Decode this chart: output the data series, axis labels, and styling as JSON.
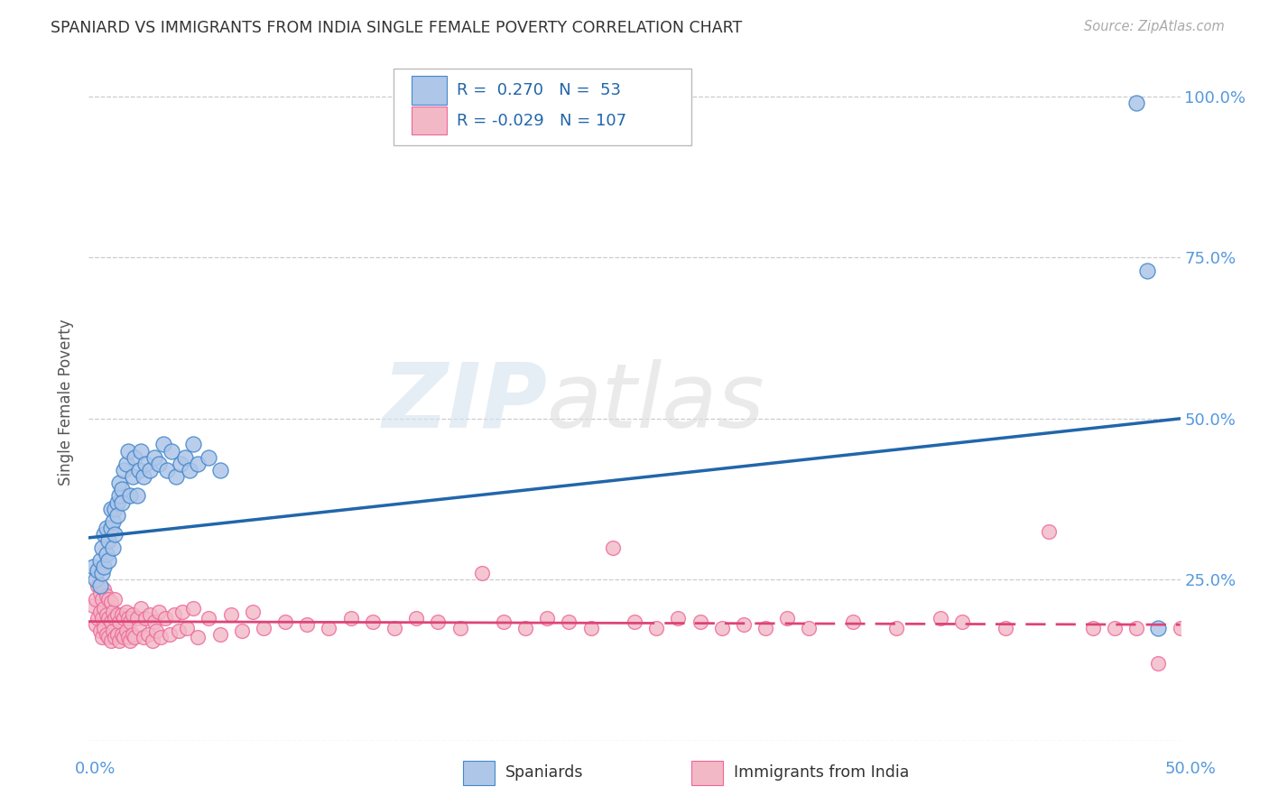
{
  "title": "SPANIARD VS IMMIGRANTS FROM INDIA SINGLE FEMALE POVERTY CORRELATION CHART",
  "source": "Source: ZipAtlas.com",
  "ylabel": "Single Female Poverty",
  "blue_color": "#aec6e8",
  "pink_color": "#f2b8c6",
  "blue_line_color": "#2266aa",
  "pink_line_color": "#dd4477",
  "blue_edge_color": "#4488cc",
  "pink_edge_color": "#ee6699",
  "watermark_zip": "ZIP",
  "watermark_atlas": "atlas",
  "background_color": "#ffffff",
  "grid_color": "#cccccc",
  "title_color": "#333333",
  "axis_tick_color": "#5599dd",
  "spaniards_x": [
    0.002,
    0.003,
    0.004,
    0.005,
    0.005,
    0.006,
    0.006,
    0.007,
    0.007,
    0.008,
    0.008,
    0.009,
    0.009,
    0.01,
    0.01,
    0.011,
    0.011,
    0.012,
    0.012,
    0.013,
    0.013,
    0.014,
    0.014,
    0.015,
    0.015,
    0.016,
    0.017,
    0.018,
    0.019,
    0.02,
    0.021,
    0.022,
    0.023,
    0.024,
    0.025,
    0.026,
    0.028,
    0.03,
    0.032,
    0.034,
    0.036,
    0.038,
    0.04,
    0.042,
    0.044,
    0.046,
    0.048,
    0.05,
    0.055,
    0.06,
    0.48,
    0.485,
    0.49
  ],
  "spaniards_y": [
    0.27,
    0.25,
    0.265,
    0.28,
    0.24,
    0.26,
    0.3,
    0.27,
    0.32,
    0.29,
    0.33,
    0.28,
    0.31,
    0.33,
    0.36,
    0.34,
    0.3,
    0.36,
    0.32,
    0.37,
    0.35,
    0.38,
    0.4,
    0.39,
    0.37,
    0.42,
    0.43,
    0.45,
    0.38,
    0.41,
    0.44,
    0.38,
    0.42,
    0.45,
    0.41,
    0.43,
    0.42,
    0.44,
    0.43,
    0.46,
    0.42,
    0.45,
    0.41,
    0.43,
    0.44,
    0.42,
    0.46,
    0.43,
    0.44,
    0.42,
    0.99,
    0.73,
    0.175
  ],
  "india_x": [
    0.002,
    0.003,
    0.003,
    0.004,
    0.004,
    0.005,
    0.005,
    0.005,
    0.006,
    0.006,
    0.006,
    0.007,
    0.007,
    0.007,
    0.008,
    0.008,
    0.008,
    0.009,
    0.009,
    0.009,
    0.01,
    0.01,
    0.01,
    0.011,
    0.011,
    0.012,
    0.012,
    0.012,
    0.013,
    0.013,
    0.014,
    0.014,
    0.015,
    0.015,
    0.016,
    0.016,
    0.017,
    0.017,
    0.018,
    0.018,
    0.019,
    0.019,
    0.02,
    0.02,
    0.021,
    0.022,
    0.023,
    0.024,
    0.025,
    0.026,
    0.027,
    0.028,
    0.029,
    0.03,
    0.031,
    0.032,
    0.033,
    0.035,
    0.037,
    0.039,
    0.041,
    0.043,
    0.045,
    0.048,
    0.05,
    0.055,
    0.06,
    0.065,
    0.07,
    0.075,
    0.08,
    0.09,
    0.1,
    0.11,
    0.12,
    0.13,
    0.14,
    0.15,
    0.16,
    0.17,
    0.18,
    0.19,
    0.2,
    0.21,
    0.22,
    0.23,
    0.24,
    0.25,
    0.26,
    0.27,
    0.28,
    0.29,
    0.3,
    0.31,
    0.32,
    0.33,
    0.35,
    0.37,
    0.39,
    0.4,
    0.42,
    0.44,
    0.46,
    0.47,
    0.48,
    0.49,
    0.5
  ],
  "india_y": [
    0.21,
    0.18,
    0.22,
    0.19,
    0.24,
    0.17,
    0.2,
    0.23,
    0.16,
    0.19,
    0.22,
    0.175,
    0.205,
    0.235,
    0.165,
    0.195,
    0.225,
    0.16,
    0.19,
    0.22,
    0.155,
    0.185,
    0.215,
    0.17,
    0.2,
    0.16,
    0.19,
    0.22,
    0.165,
    0.195,
    0.155,
    0.185,
    0.165,
    0.195,
    0.16,
    0.19,
    0.17,
    0.2,
    0.16,
    0.19,
    0.155,
    0.185,
    0.165,
    0.195,
    0.16,
    0.19,
    0.175,
    0.205,
    0.16,
    0.19,
    0.165,
    0.195,
    0.155,
    0.185,
    0.17,
    0.2,
    0.16,
    0.19,
    0.165,
    0.195,
    0.17,
    0.2,
    0.175,
    0.205,
    0.16,
    0.19,
    0.165,
    0.195,
    0.17,
    0.2,
    0.175,
    0.185,
    0.18,
    0.175,
    0.19,
    0.185,
    0.175,
    0.19,
    0.185,
    0.175,
    0.26,
    0.185,
    0.175,
    0.19,
    0.185,
    0.175,
    0.3,
    0.185,
    0.175,
    0.19,
    0.185,
    0.175,
    0.18,
    0.175,
    0.19,
    0.175,
    0.185,
    0.175,
    0.19,
    0.185,
    0.175,
    0.325,
    0.175,
    0.175,
    0.175,
    0.12,
    0.175
  ],
  "blue_line_intercept": 0.315,
  "blue_line_slope": 0.37,
  "pink_line_intercept": 0.185,
  "pink_line_slope": -0.01,
  "pink_line_dash_start": 0.25,
  "xlim": [
    0,
    0.5
  ],
  "ylim": [
    0.0,
    1.05
  ],
  "ytick_vals": [
    0.0,
    0.25,
    0.5,
    0.75,
    1.0
  ],
  "ytick_labels": [
    "",
    "25.0%",
    "50.0%",
    "75.0%",
    "100.0%"
  ],
  "xtick_left_label": "0.0%",
  "xtick_right_label": "50.0%"
}
